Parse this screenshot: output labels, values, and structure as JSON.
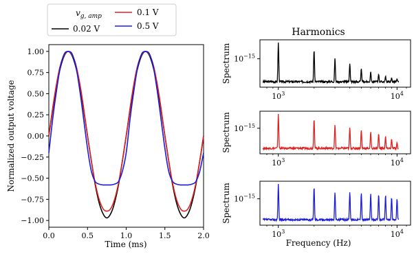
{
  "chart_data": [
    {
      "type": "line",
      "xlabel": "Time (ms)",
      "ylabel": "Normalized output voltage",
      "xlim": [
        0.0,
        2.0
      ],
      "ylim": [
        -1.08,
        1.08
      ],
      "xticks": [
        "0.0",
        "0.5",
        "1.0",
        "1.5",
        "2.0"
      ],
      "yticks": [
        "-1.00",
        "-0.75",
        "-0.50",
        "-0.25",
        "0.00",
        "0.25",
        "0.50",
        "0.75",
        "1.00"
      ],
      "legend": {
        "title": "v_g,amp",
        "title_main": "v",
        "title_sub": "g, amp",
        "placement": "top-center, outside the axes"
      },
      "grid": false,
      "series": [
        {
          "name": "0.02 V",
          "color": "#000000",
          "x": [
            0.0,
            0.05,
            0.1,
            0.15,
            0.2,
            0.25,
            0.3,
            0.35,
            0.4,
            0.45,
            0.5,
            0.55,
            0.6,
            0.65,
            0.7,
            0.75,
            0.8,
            0.85,
            0.9,
            0.95,
            1.0,
            1.05,
            1.1,
            1.15,
            1.2,
            1.25,
            1.3,
            1.35,
            1.4,
            1.45,
            1.5,
            1.55,
            1.6,
            1.65,
            1.7,
            1.75,
            1.8,
            1.85,
            1.9,
            1.95,
            2.0
          ],
          "y": [
            0.0,
            0.31,
            0.59,
            0.81,
            0.95,
            1.0,
            0.95,
            0.81,
            0.59,
            0.31,
            0.0,
            -0.3,
            -0.58,
            -0.79,
            -0.92,
            -0.97,
            -0.92,
            -0.79,
            -0.58,
            -0.3,
            0.0,
            0.31,
            0.59,
            0.81,
            0.95,
            1.0,
            0.95,
            0.81,
            0.59,
            0.31,
            0.0,
            -0.3,
            -0.58,
            -0.79,
            -0.92,
            -0.97,
            -0.92,
            -0.79,
            -0.58,
            -0.3,
            0.0
          ]
        },
        {
          "name": "0.1 V",
          "color": "#e02020",
          "x": [
            0.0,
            0.05,
            0.1,
            0.15,
            0.2,
            0.25,
            0.3,
            0.35,
            0.4,
            0.45,
            0.5,
            0.55,
            0.6,
            0.65,
            0.7,
            0.75,
            0.8,
            0.85,
            0.9,
            0.95,
            1.0,
            1.05,
            1.1,
            1.15,
            1.2,
            1.25,
            1.3,
            1.35,
            1.4,
            1.45,
            1.5,
            1.55,
            1.6,
            1.65,
            1.7,
            1.75,
            1.8,
            1.85,
            1.9,
            1.95,
            2.0
          ],
          "y": [
            0.0,
            0.33,
            0.62,
            0.84,
            0.96,
            1.0,
            0.96,
            0.84,
            0.62,
            0.33,
            0.0,
            -0.3,
            -0.56,
            -0.75,
            -0.86,
            -0.89,
            -0.86,
            -0.75,
            -0.56,
            -0.3,
            0.0,
            0.33,
            0.62,
            0.84,
            0.96,
            1.0,
            0.96,
            0.84,
            0.62,
            0.33,
            0.0,
            -0.3,
            -0.56,
            -0.75,
            -0.86,
            -0.89,
            -0.86,
            -0.75,
            -0.56,
            -0.3,
            0.0
          ]
        },
        {
          "name": "0.5 V",
          "color": "#1a1adc",
          "x": [
            0.0,
            0.05,
            0.1,
            0.15,
            0.2,
            0.25,
            0.3,
            0.35,
            0.4,
            0.45,
            0.5,
            0.55,
            0.6,
            0.65,
            0.7,
            0.75,
            0.8,
            0.85,
            0.9,
            0.95,
            1.0,
            1.05,
            1.1,
            1.15,
            1.2,
            1.25,
            1.3,
            1.35,
            1.4,
            1.45,
            1.5,
            1.55,
            1.6,
            1.65,
            1.7,
            1.75,
            1.8,
            1.85,
            1.9,
            1.95,
            2.0
          ],
          "y": [
            -0.2,
            0.2,
            0.54,
            0.82,
            0.97,
            1.0,
            0.97,
            0.82,
            0.54,
            0.2,
            -0.15,
            -0.42,
            -0.54,
            -0.57,
            -0.58,
            -0.58,
            -0.58,
            -0.57,
            -0.54,
            -0.42,
            -0.2,
            0.2,
            0.54,
            0.82,
            0.97,
            1.0,
            0.97,
            0.82,
            0.54,
            0.2,
            -0.15,
            -0.42,
            -0.54,
            -0.57,
            -0.58,
            -0.58,
            -0.58,
            -0.57,
            -0.54,
            -0.42,
            -0.2
          ]
        }
      ]
    },
    {
      "type": "line",
      "title": "Harmonics",
      "xlabel": "Frequency (Hz)",
      "ylabel": "Spectrum",
      "xscale": "log",
      "xlim": [
        700,
        13000
      ],
      "xtick_labels": [
        "10^3",
        "10^4"
      ],
      "ytick_label": "10^-15",
      "panels": [
        {
          "name": "0.02 V",
          "color": "#000000",
          "harmonic_freqs_hz": [
            1000,
            2000,
            3000,
            4000,
            5000,
            6000,
            7000,
            8000,
            9000,
            10000
          ],
          "peak_heights_relative": [
            1.0,
            0.82,
            0.62,
            0.48,
            0.36,
            0.28,
            0.22,
            0.17,
            0.13,
            0.1
          ]
        },
        {
          "name": "0.1 V",
          "color": "#e02020",
          "harmonic_freqs_hz": [
            1000,
            2000,
            3000,
            4000,
            5000,
            6000,
            7000,
            8000,
            9000,
            10000
          ],
          "peak_heights_relative": [
            1.0,
            0.86,
            0.7,
            0.62,
            0.55,
            0.5,
            0.45,
            0.38,
            0.3,
            0.2
          ]
        },
        {
          "name": "0.5 V",
          "color": "#1a1adc",
          "harmonic_freqs_hz": [
            1000,
            2000,
            3000,
            4000,
            5000,
            6000,
            7000,
            8000,
            9000,
            10000
          ],
          "peak_heights_relative": [
            1.0,
            0.92,
            0.78,
            0.78,
            0.76,
            0.74,
            0.72,
            0.7,
            0.64,
            0.6
          ]
        }
      ]
    }
  ]
}
